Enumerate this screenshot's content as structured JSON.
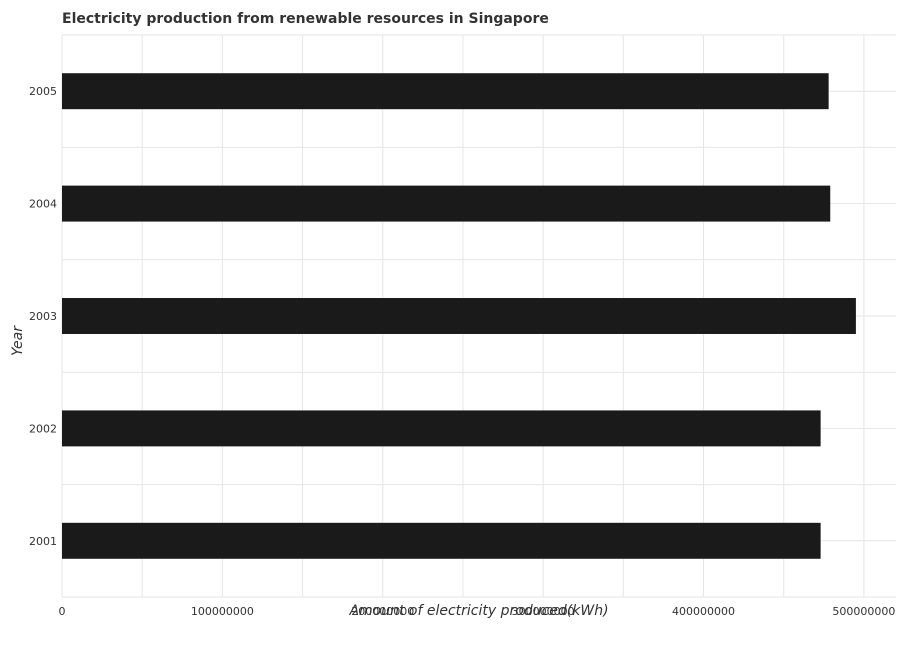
{
  "chart_data": {
    "type": "bar",
    "orientation": "horizontal",
    "title": "Electricity production from renewable resources in Singapore",
    "xlabel": "Amount of electricity produced(kWh)",
    "ylabel": "Year",
    "categories": [
      "2001",
      "2002",
      "2003",
      "2004",
      "2005"
    ],
    "values": [
      473000000,
      473000000,
      495000000,
      479000000,
      478000000
    ],
    "xlim": [
      0,
      520000000
    ],
    "xticks": [
      0,
      100000000,
      200000000,
      300000000,
      400000000,
      500000000
    ],
    "xtick_labels": [
      "0",
      "100000000",
      "200000000",
      "300000000",
      "400000000",
      "500000000"
    ],
    "grid": true,
    "bar_color": "#1a1a1a"
  }
}
